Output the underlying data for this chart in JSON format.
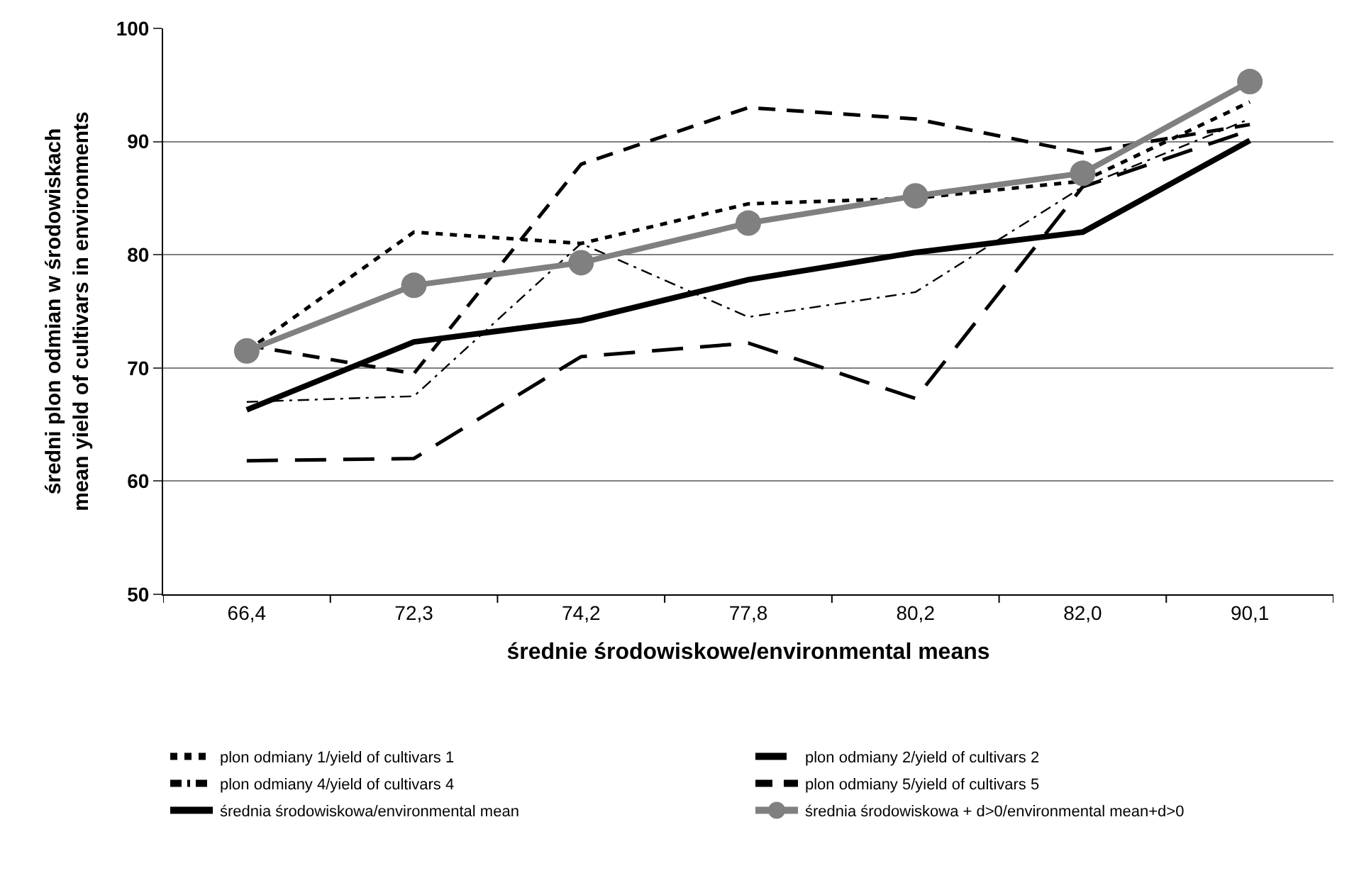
{
  "chart_data": {
    "type": "line",
    "xlabel": "średnie środowiskowe/environmental means",
    "ylabel": "średni plon odmian w środowiskach\nmean yield of cultivars in environments",
    "categories": [
      "66,4",
      "72,3",
      "74,2",
      "77,8",
      "80,2",
      "82,0",
      "90,1"
    ],
    "ylim": [
      50,
      100
    ],
    "yticks": [
      50,
      60,
      70,
      80,
      90,
      100
    ],
    "grid": "y",
    "legend": "bottom",
    "series": [
      {
        "name": "plon odmiany 1/yield of cultivars 1",
        "color": "#000000",
        "line_style": "dotted",
        "marker": "none",
        "values": [
          71.5,
          82,
          81,
          84.5,
          85,
          86.5,
          93.5
        ]
      },
      {
        "name": "plon odmiany 2/yield of cultivars 2",
        "color": "#000000",
        "line_style": "longdash",
        "marker": "none",
        "values": [
          61.8,
          62,
          71,
          72.2,
          67.3,
          86,
          91
        ]
      },
      {
        "name": "plon odmiany 4/yield of cultivars 4",
        "color": "#000000",
        "line_style": "dashdot",
        "marker": "none",
        "values": [
          67,
          67.5,
          81,
          74.5,
          76.7,
          86,
          92
        ]
      },
      {
        "name": "plon odmiany 5/yield of cultivars 5",
        "color": "#000000",
        "line_style": "dashed",
        "marker": "none",
        "values": [
          72,
          69.5,
          88,
          93,
          92,
          89,
          91.5
        ]
      },
      {
        "name": "średnia środowiskowa/environmental mean",
        "color": "#000000",
        "line_style": "solid",
        "marker": "none",
        "values": [
          66.3,
          72.3,
          74.2,
          77.8,
          80.2,
          82.0,
          90.1
        ]
      },
      {
        "name": "średnia środowiskowa + d>0/environmental mean+d>0",
        "color": "#808080",
        "line_style": "solid",
        "marker": "circle",
        "values": [
          71.5,
          77.3,
          79.3,
          82.8,
          85.2,
          87.2,
          95.3
        ]
      }
    ]
  }
}
